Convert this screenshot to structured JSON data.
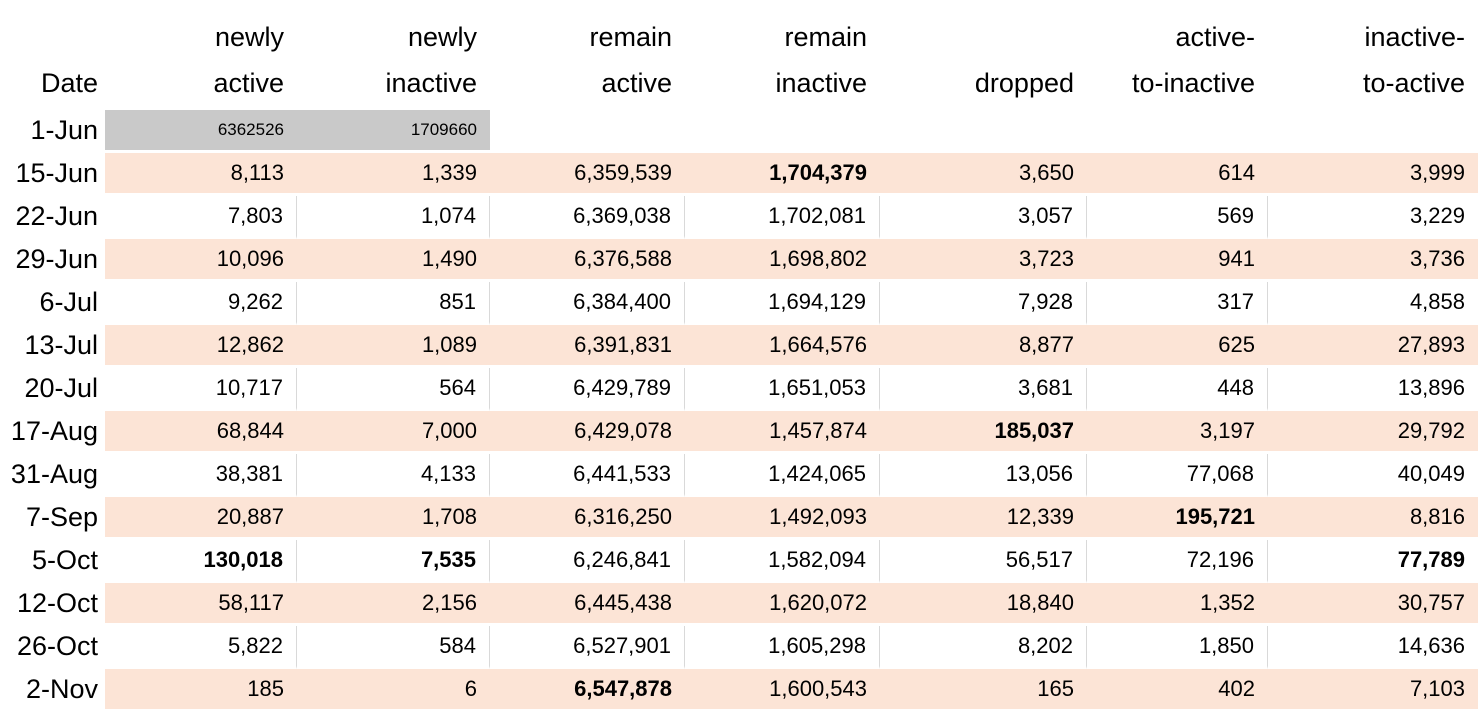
{
  "colors": {
    "row_band": "#fce4d6",
    "baseline_fill": "#c9c9c9",
    "gridline": "#d9d9d9",
    "text": "#000000",
    "background": "#ffffff"
  },
  "table": {
    "columns": [
      {
        "id": "date",
        "label": "Date",
        "lines": [
          "Date"
        ]
      },
      {
        "id": "newly-active",
        "label": "newly active",
        "lines": [
          "newly",
          "active"
        ]
      },
      {
        "id": "newly-inactive",
        "label": "newly inactive",
        "lines": [
          "newly",
          "inactive"
        ]
      },
      {
        "id": "remain-active",
        "label": "remain active",
        "lines": [
          "remain",
          "active"
        ]
      },
      {
        "id": "remain-inactive",
        "label": "remain inactive",
        "lines": [
          "remain",
          "inactive"
        ]
      },
      {
        "id": "dropped",
        "label": "dropped",
        "lines": [
          "dropped"
        ]
      },
      {
        "id": "active-to-inactive",
        "label": "active-to-inactive",
        "lines": [
          "active-",
          "to-inactive"
        ]
      },
      {
        "id": "inactive-to-active",
        "label": "inactive-to-active",
        "lines": [
          "inactive-",
          "to-active"
        ]
      }
    ],
    "rows": [
      {
        "date": "1-Jun",
        "style": "baseline",
        "cells": [
          "6362526",
          "1709660",
          "",
          "",
          "",
          "",
          ""
        ],
        "bold": []
      },
      {
        "date": "15-Jun",
        "style": "shaded",
        "cells": [
          "8,113",
          "1,339",
          "6,359,539",
          "1,704,379",
          "3,650",
          "614",
          "3,999"
        ],
        "bold": [
          3
        ]
      },
      {
        "date": "22-Jun",
        "style": "white",
        "cells": [
          "7,803",
          "1,074",
          "6,369,038",
          "1,702,081",
          "3,057",
          "569",
          "3,229"
        ],
        "bold": []
      },
      {
        "date": "29-Jun",
        "style": "shaded",
        "cells": [
          "10,096",
          "1,490",
          "6,376,588",
          "1,698,802",
          "3,723",
          "941",
          "3,736"
        ],
        "bold": []
      },
      {
        "date": "6-Jul",
        "style": "white",
        "cells": [
          "9,262",
          "851",
          "6,384,400",
          "1,694,129",
          "7,928",
          "317",
          "4,858"
        ],
        "bold": []
      },
      {
        "date": "13-Jul",
        "style": "shaded",
        "cells": [
          "12,862",
          "1,089",
          "6,391,831",
          "1,664,576",
          "8,877",
          "625",
          "27,893"
        ],
        "bold": []
      },
      {
        "date": "20-Jul",
        "style": "white",
        "cells": [
          "10,717",
          "564",
          "6,429,789",
          "1,651,053",
          "3,681",
          "448",
          "13,896"
        ],
        "bold": []
      },
      {
        "date": "17-Aug",
        "style": "shaded",
        "cells": [
          "68,844",
          "7,000",
          "6,429,078",
          "1,457,874",
          "185,037",
          "3,197",
          "29,792"
        ],
        "bold": [
          4
        ]
      },
      {
        "date": "31-Aug",
        "style": "white",
        "cells": [
          "38,381",
          "4,133",
          "6,441,533",
          "1,424,065",
          "13,056",
          "77,068",
          "40,049"
        ],
        "bold": []
      },
      {
        "date": "7-Sep",
        "style": "shaded",
        "cells": [
          "20,887",
          "1,708",
          "6,316,250",
          "1,492,093",
          "12,339",
          "195,721",
          "8,816"
        ],
        "bold": [
          5
        ]
      },
      {
        "date": "5-Oct",
        "style": "white",
        "cells": [
          "130,018",
          "7,535",
          "6,246,841",
          "1,582,094",
          "56,517",
          "72,196",
          "77,789"
        ],
        "bold": [
          0,
          1,
          6
        ]
      },
      {
        "date": "12-Oct",
        "style": "shaded",
        "cells": [
          "58,117",
          "2,156",
          "6,445,438",
          "1,620,072",
          "18,840",
          "1,352",
          "30,757"
        ],
        "bold": []
      },
      {
        "date": "26-Oct",
        "style": "white",
        "cells": [
          "5,822",
          "584",
          "6,527,901",
          "1,605,298",
          "8,202",
          "1,850",
          "14,636"
        ],
        "bold": []
      },
      {
        "date": "2-Nov",
        "style": "shaded",
        "cells": [
          "185",
          "6",
          "6,547,878",
          "1,600,543",
          "165",
          "402",
          "7,103"
        ],
        "bold": [
          2
        ]
      }
    ]
  }
}
